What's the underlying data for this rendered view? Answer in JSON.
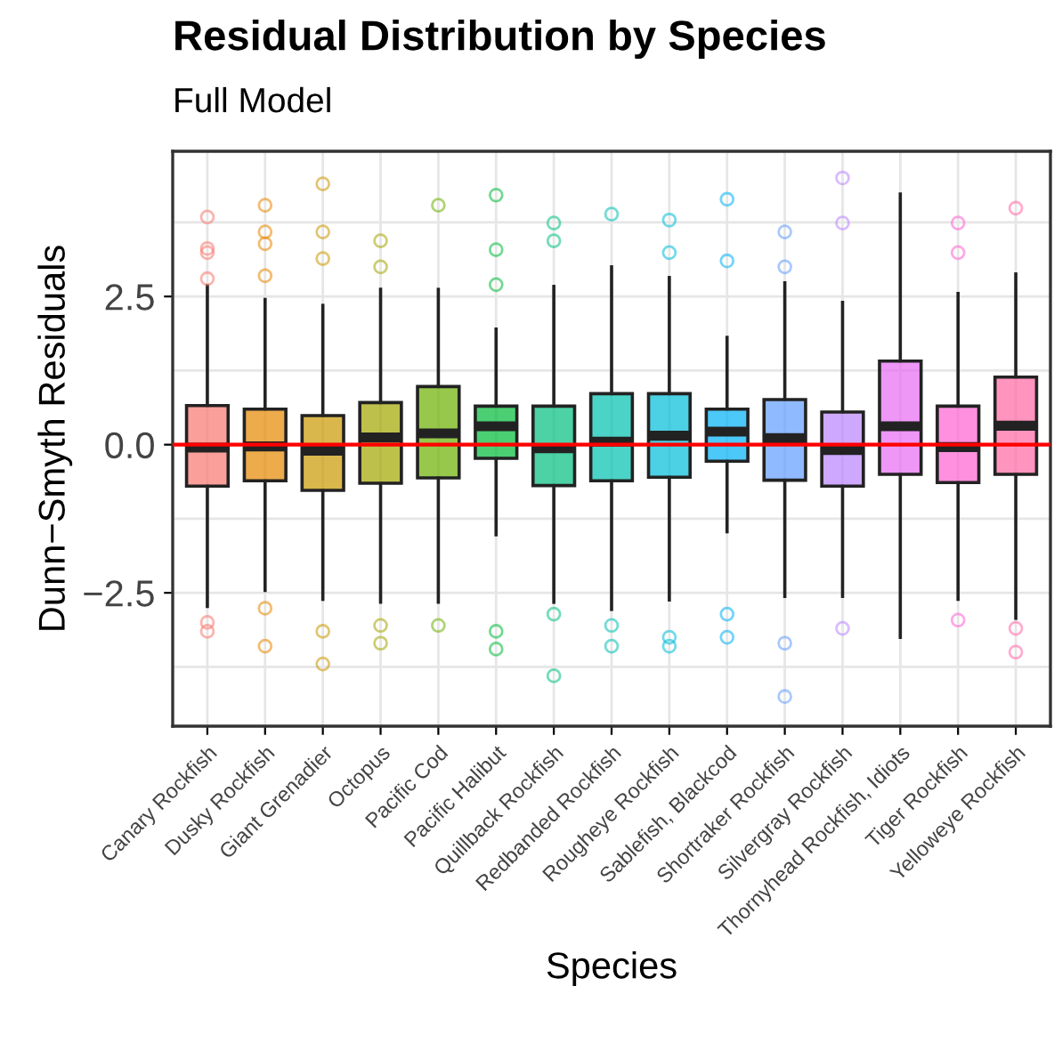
{
  "chart_data": {
    "type": "box",
    "title": "Residual Distribution by Species",
    "subtitle": "Full Model",
    "xlabel": "Species",
    "ylabel": "Dunn−Smyth Residuals",
    "categories": [
      "Canary Rockfish",
      "Dusky Rockfish",
      "Giant Grenadier",
      "Octopus",
      "Pacific Cod",
      "Pacific Halibut",
      "Quillback Rockfish",
      "Redbanded Rockfish",
      "Rougheye Rockfish",
      "Sablefish, Blackcod",
      "Shortraker Rockfish",
      "Silvergray Rockfish",
      "Thornyhead Rockfish, Idiots",
      "Tiger Rockfish",
      "Yelloweye Rockfish"
    ],
    "colors": [
      "#F8766D",
      "#E58700",
      "#C99800",
      "#A3A500",
      "#6BB100",
      "#00BA38",
      "#00BF7D",
      "#00C0AF",
      "#00BCD8",
      "#00B0F6",
      "#619CFF",
      "#B983FF",
      "#E76BF3",
      "#FD61D1",
      "#FF67A4"
    ],
    "boxes": [
      {
        "low": -2.73,
        "q1": -0.7,
        "median": -0.05,
        "q3": 0.66,
        "high": 2.68,
        "outliers": [
          3.84,
          3.31,
          3.24,
          2.8,
          -3.0,
          -3.15
        ]
      },
      {
        "low": -2.46,
        "q1": -0.61,
        "median": -0.03,
        "q3": 0.6,
        "high": 2.45,
        "outliers": [
          4.04,
          3.59,
          3.39,
          2.85,
          -2.76,
          -3.4
        ]
      },
      {
        "low": -2.61,
        "q1": -0.77,
        "median": -0.1,
        "q3": 0.49,
        "high": 2.35,
        "outliers": [
          4.4,
          3.59,
          3.14,
          -3.15,
          -3.7
        ]
      },
      {
        "low": -2.66,
        "q1": -0.65,
        "median": 0.12,
        "q3": 0.71,
        "high": 2.62,
        "outliers": [
          3.44,
          3.0,
          -3.05,
          -3.35
        ]
      },
      {
        "low": -2.66,
        "q1": -0.56,
        "median": 0.19,
        "q3": 0.98,
        "high": 2.62,
        "outliers": [
          4.04,
          -3.05
        ]
      },
      {
        "low": -1.52,
        "q1": -0.23,
        "median": 0.31,
        "q3": 0.65,
        "high": 1.95,
        "outliers": [
          4.21,
          3.29,
          2.7,
          -3.15,
          -3.45
        ]
      },
      {
        "low": -2.66,
        "q1": -0.69,
        "median": -0.06,
        "q3": 0.65,
        "high": 2.67,
        "outliers": [
          3.74,
          3.44,
          -2.86,
          -3.9
        ]
      },
      {
        "low": -2.78,
        "q1": -0.61,
        "median": 0.05,
        "q3": 0.86,
        "high": 3.0,
        "outliers": [
          3.89,
          -3.05,
          -3.4
        ]
      },
      {
        "low": -2.62,
        "q1": -0.55,
        "median": 0.15,
        "q3": 0.86,
        "high": 2.82,
        "outliers": [
          3.79,
          3.24,
          -3.25,
          -3.4
        ]
      },
      {
        "low": -1.47,
        "q1": -0.28,
        "median": 0.22,
        "q3": 0.6,
        "high": 1.81,
        "outliers": [
          4.14,
          3.1,
          -2.86,
          -3.25
        ]
      },
      {
        "low": -2.56,
        "q1": -0.6,
        "median": 0.11,
        "q3": 0.76,
        "high": 2.73,
        "outliers": [
          3.59,
          3.0,
          -3.35,
          -4.25
        ]
      },
      {
        "low": -2.56,
        "q1": -0.7,
        "median": -0.09,
        "q3": 0.55,
        "high": 2.4,
        "outliers": [
          4.5,
          3.74,
          -3.1
        ]
      },
      {
        "low": -3.25,
        "q1": -0.5,
        "median": 0.31,
        "q3": 1.41,
        "high": 4.23
      },
      {
        "low": -2.61,
        "q1": -0.64,
        "median": -0.04,
        "q3": 0.65,
        "high": 2.55,
        "outliers": [
          3.74,
          3.24,
          -2.96
        ]
      },
      {
        "low": -2.93,
        "q1": -0.5,
        "median": 0.32,
        "q3": 1.14,
        "high": 2.88,
        "outliers": [
          3.99,
          -3.5,
          -3.1
        ]
      }
    ],
    "ylim": [
      -4.75,
      4.95
    ],
    "yticks": [
      {
        "value": -3.75,
        "label": null
      },
      {
        "value": -2.5,
        "label": "−2.5"
      },
      {
        "value": -1.25,
        "label": null
      },
      {
        "value": 0,
        "label": "0.0"
      },
      {
        "value": 1.25,
        "label": null
      },
      {
        "value": 2.5,
        "label": "2.5"
      },
      {
        "value": 3.75,
        "label": null
      }
    ],
    "ref_lines": [
      {
        "axis": "y",
        "value": 0,
        "color": "#ff0000",
        "line_style": "solid"
      }
    ],
    "grid": true
  }
}
